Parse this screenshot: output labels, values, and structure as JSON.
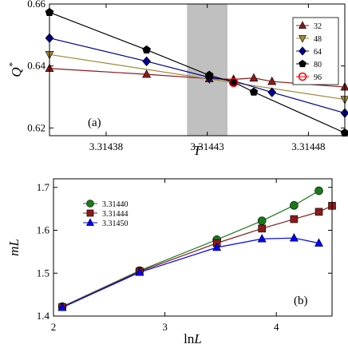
{
  "chart_data": [
    {
      "type": "line",
      "panel_label": "(a)",
      "xlabel": "T",
      "ylabel": "Q*",
      "xlim": [
        3.314352,
        3.314498
      ],
      "ylim": [
        0.6175,
        0.66
      ],
      "xticks": [
        3.31438,
        3.31443,
        3.31448
      ],
      "xtick_labels": [
        "3.31438",
        "3.31443",
        "3.31448"
      ],
      "yticks": [
        0.62,
        0.64,
        0.66
      ],
      "ytick_labels": [
        "0.62",
        "0.64",
        "0.66"
      ],
      "shaded_band": [
        3.31442,
        3.31444
      ],
      "legend_position": "top-right",
      "grid": false,
      "series": [
        {
          "name": "32",
          "marker": "triangle-up",
          "color": "#8b1a1a",
          "x": [
            3.314352,
            3.3144,
            3.314431,
            3.314443,
            3.314453,
            3.314462,
            3.314498
          ],
          "y": [
            0.6392,
            0.6373,
            0.6359,
            0.6357,
            0.6361,
            0.635,
            0.6332
          ]
        },
        {
          "name": "48",
          "marker": "triangle-down",
          "color": "#a08a3a",
          "x": [
            3.314352,
            3.314431,
            3.314498
          ],
          "y": [
            0.6437,
            0.6358,
            0.6292
          ]
        },
        {
          "name": "64",
          "marker": "diamond",
          "color": "#00008b",
          "x": [
            3.314352,
            3.3144,
            3.314431,
            3.314443,
            3.314462,
            3.314498
          ],
          "y": [
            0.649,
            0.6415,
            0.6363,
            0.6352,
            0.6315,
            0.6248
          ]
        },
        {
          "name": "80",
          "marker": "pentagon",
          "color": "#000000",
          "x": [
            3.314352,
            3.3144,
            3.314431,
            3.314443,
            3.314453,
            3.314498
          ],
          "y": [
            0.6573,
            0.6452,
            0.637,
            0.6348,
            0.6316,
            0.6184
          ]
        },
        {
          "name": "96",
          "marker": "circle-open",
          "color": "#ff0000",
          "x": [
            3.314443
          ],
          "y": [
            0.6347
          ]
        }
      ]
    },
    {
      "type": "line",
      "panel_label": "(b)",
      "xlabel": "lnL",
      "ylabel": "mL",
      "xlim": [
        2,
        4.5
      ],
      "ylim": [
        1.4,
        1.72
      ],
      "xticks": [
        2,
        3,
        4
      ],
      "xtick_labels": [
        "2",
        "3",
        "4"
      ],
      "yticks": [
        1.4,
        1.5,
        1.6,
        1.7
      ],
      "ytick_labels": [
        "1.4",
        "1.5",
        "1.6",
        "1.7"
      ],
      "legend_position": "top-left",
      "grid": false,
      "series": [
        {
          "name": "3.31440",
          "marker": "circle",
          "color": "#1a7a1a",
          "x": [
            2.079,
            2.773,
            3.466,
            3.871,
            4.159,
            4.382
          ],
          "y": [
            1.422,
            1.506,
            1.578,
            1.622,
            1.658,
            1.692
          ]
        },
        {
          "name": "3.31444",
          "marker": "square",
          "color": "#8b1a1a",
          "x": [
            2.079,
            2.773,
            3.466,
            3.871,
            4.159,
            4.382,
            4.5
          ],
          "y": [
            1.421,
            1.504,
            1.57,
            1.604,
            1.626,
            1.643,
            1.657
          ]
        },
        {
          "name": "3.31450",
          "marker": "triangle-up",
          "color": "#0000ff",
          "x": [
            2.079,
            2.773,
            3.466,
            3.871,
            4.159,
            4.382
          ],
          "y": [
            1.42,
            1.502,
            1.56,
            1.58,
            1.582,
            1.57
          ]
        }
      ]
    }
  ]
}
